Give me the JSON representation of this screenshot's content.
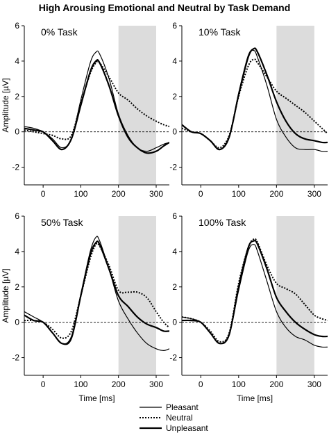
{
  "title": "High Arousing Emotional and Neutral by Task Demand",
  "legend": {
    "placement": "bottom-center",
    "entries": [
      {
        "name": "Pleasant",
        "style": "thin-solid"
      },
      {
        "name": "Neutral",
        "style": "dotted"
      },
      {
        "name": "Unpleasant",
        "style": "thick-solid"
      }
    ]
  },
  "chart_data": [
    {
      "type": "line",
      "panel_label": "0% Task",
      "xlabel": "",
      "ylabel": "Amplitude [µV]",
      "xlim": [
        -50,
        335
      ],
      "ylim": [
        -3,
        6
      ],
      "xticks": [
        0,
        100,
        200,
        300
      ],
      "yticks": [
        -2,
        0,
        2,
        4,
        6
      ],
      "shaded_region": [
        200,
        300
      ],
      "reference_line": 0,
      "series": [
        {
          "name": "Pleasant",
          "x": [
            -50,
            -25,
            0,
            25,
            50,
            75,
            100,
            125,
            140,
            150,
            175,
            200,
            225,
            250,
            275,
            300,
            320,
            335
          ],
          "y": [
            0.3,
            0.2,
            0.0,
            -0.4,
            -0.9,
            -0.4,
            1.8,
            3.9,
            4.5,
            4.4,
            3.0,
            1.0,
            -0.2,
            -0.9,
            -1.1,
            -0.9,
            -0.7,
            -0.6
          ]
        },
        {
          "name": "Neutral",
          "x": [
            -50,
            -25,
            0,
            25,
            50,
            75,
            100,
            125,
            140,
            150,
            175,
            200,
            225,
            250,
            275,
            300,
            320,
            335
          ],
          "y": [
            0.1,
            0.0,
            -0.1,
            -0.2,
            -0.4,
            -0.2,
            1.6,
            3.3,
            3.9,
            3.9,
            3.1,
            2.2,
            1.8,
            1.3,
            0.9,
            0.6,
            0.4,
            0.3
          ]
        },
        {
          "name": "Unpleasant",
          "x": [
            -50,
            -25,
            0,
            25,
            50,
            75,
            100,
            125,
            140,
            150,
            175,
            200,
            225,
            250,
            275,
            300,
            320,
            335
          ],
          "y": [
            0.2,
            0.1,
            0.0,
            -0.5,
            -1.0,
            -0.4,
            1.5,
            3.4,
            4.0,
            3.9,
            2.6,
            0.9,
            -0.3,
            -0.9,
            -1.2,
            -1.1,
            -0.8,
            -0.6
          ]
        }
      ]
    },
    {
      "type": "line",
      "panel_label": "10% Task",
      "xlabel": "",
      "ylabel": "",
      "xlim": [
        -50,
        335
      ],
      "ylim": [
        -3,
        6
      ],
      "xticks": [
        0,
        100,
        200,
        300
      ],
      "yticks": [
        -2,
        0,
        2,
        4,
        6
      ],
      "shaded_region": [
        200,
        300
      ],
      "reference_line": 0,
      "series": [
        {
          "name": "Pleasant",
          "x": [
            -50,
            -25,
            0,
            25,
            50,
            75,
            100,
            125,
            140,
            150,
            175,
            200,
            225,
            250,
            275,
            300,
            320,
            335
          ],
          "y": [
            0.4,
            0.0,
            -0.1,
            -0.5,
            -1.0,
            -0.3,
            2.2,
            4.3,
            4.6,
            4.2,
            2.6,
            0.7,
            -0.3,
            -0.9,
            -1.0,
            -1.0,
            -1.1,
            -1.1
          ]
        },
        {
          "name": "Neutral",
          "x": [
            -50,
            -25,
            0,
            25,
            50,
            75,
            100,
            125,
            140,
            150,
            175,
            200,
            225,
            250,
            275,
            300,
            320,
            335
          ],
          "y": [
            0.2,
            0.0,
            -0.1,
            -0.5,
            -0.9,
            -0.2,
            2.0,
            3.7,
            4.1,
            3.9,
            3.1,
            2.3,
            1.9,
            1.5,
            1.1,
            0.6,
            0.2,
            -0.1
          ]
        },
        {
          "name": "Unpleasant",
          "x": [
            -50,
            -25,
            0,
            25,
            50,
            75,
            100,
            125,
            140,
            150,
            175,
            200,
            225,
            250,
            275,
            300,
            320,
            335
          ],
          "y": [
            0.4,
            0.0,
            -0.1,
            -0.5,
            -1.0,
            -0.3,
            2.1,
            4.2,
            4.7,
            4.5,
            3.2,
            1.7,
            0.6,
            -0.1,
            -0.4,
            -0.5,
            -0.6,
            -0.6
          ]
        }
      ]
    },
    {
      "type": "line",
      "panel_label": "50% Task",
      "xlabel": "Time [ms]",
      "ylabel": "Amplitude [µV]",
      "xlim": [
        -50,
        335
      ],
      "ylim": [
        -3,
        6
      ],
      "xticks": [
        0,
        100,
        200,
        300
      ],
      "yticks": [
        -2,
        0,
        2,
        4,
        6
      ],
      "shaded_region": [
        200,
        300
      ],
      "reference_line": 0,
      "series": [
        {
          "name": "Pleasant",
          "x": [
            -50,
            -25,
            0,
            25,
            50,
            75,
            100,
            125,
            140,
            150,
            175,
            200,
            225,
            250,
            275,
            300,
            320,
            335
          ],
          "y": [
            0.6,
            0.3,
            0.0,
            -0.6,
            -1.2,
            -0.8,
            1.6,
            4.0,
            4.8,
            4.6,
            3.0,
            1.2,
            0.2,
            -0.6,
            -1.2,
            -1.5,
            -1.6,
            -1.5
          ]
        },
        {
          "name": "Neutral",
          "x": [
            -50,
            -25,
            0,
            25,
            50,
            75,
            100,
            125,
            140,
            150,
            175,
            200,
            225,
            250,
            275,
            300,
            320,
            335
          ],
          "y": [
            0.1,
            0.1,
            0.0,
            -0.4,
            -0.9,
            -0.5,
            1.5,
            3.6,
            4.4,
            4.3,
            3.2,
            1.8,
            1.7,
            1.7,
            1.4,
            0.6,
            0.0,
            -0.3
          ]
        },
        {
          "name": "Unpleasant",
          "x": [
            -50,
            -25,
            0,
            25,
            50,
            75,
            100,
            125,
            140,
            150,
            175,
            200,
            225,
            250,
            275,
            300,
            320,
            335
          ],
          "y": [
            0.4,
            0.1,
            0.0,
            -0.6,
            -1.2,
            -0.9,
            1.5,
            3.8,
            4.5,
            4.4,
            3.0,
            1.5,
            0.9,
            0.3,
            -0.1,
            -0.3,
            -0.5,
            -0.5
          ]
        }
      ]
    },
    {
      "type": "line",
      "panel_label": "100% Task",
      "xlabel": "Time [ms]",
      "ylabel": "",
      "xlim": [
        -50,
        335
      ],
      "ylim": [
        -3,
        6
      ],
      "xticks": [
        0,
        100,
        200,
        300
      ],
      "yticks": [
        -2,
        0,
        2,
        4,
        6
      ],
      "shaded_region": [
        200,
        300
      ],
      "reference_line": 0,
      "series": [
        {
          "name": "Pleasant",
          "x": [
            -50,
            -25,
            0,
            25,
            50,
            75,
            100,
            125,
            140,
            150,
            175,
            200,
            225,
            250,
            275,
            300,
            320,
            335
          ],
          "y": [
            0.3,
            0.2,
            0.0,
            -0.6,
            -1.2,
            -0.7,
            1.8,
            4.0,
            4.4,
            4.0,
            2.3,
            0.6,
            -0.3,
            -0.8,
            -1.0,
            -1.3,
            -1.4,
            -1.4
          ]
        },
        {
          "name": "Neutral",
          "x": [
            -50,
            -25,
            0,
            25,
            50,
            75,
            100,
            125,
            140,
            150,
            175,
            200,
            225,
            250,
            275,
            300,
            320,
            335
          ],
          "y": [
            0.3,
            0.2,
            0.0,
            -0.5,
            -1.1,
            -0.6,
            2.2,
            4.2,
            4.7,
            4.5,
            3.2,
            2.2,
            1.9,
            1.6,
            1.0,
            0.4,
            0.2,
            0.1
          ]
        },
        {
          "name": "Unpleasant",
          "x": [
            -50,
            -25,
            0,
            25,
            50,
            75,
            100,
            125,
            140,
            150,
            175,
            200,
            225,
            250,
            275,
            300,
            320,
            335
          ],
          "y": [
            0.1,
            0.1,
            0.0,
            -0.6,
            -1.2,
            -0.7,
            2.0,
            4.2,
            4.6,
            4.4,
            3.0,
            1.4,
            0.6,
            0.0,
            -0.4,
            -0.7,
            -0.8,
            -0.8
          ]
        }
      ]
    }
  ]
}
